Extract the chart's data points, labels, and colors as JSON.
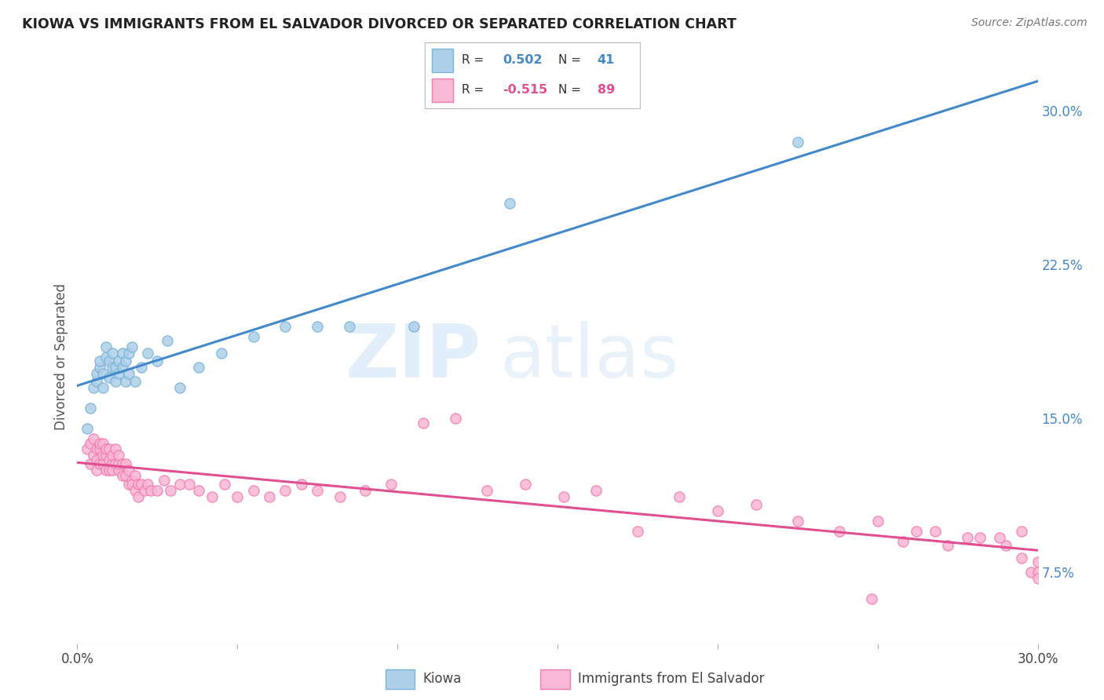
{
  "title": "KIOWA VS IMMIGRANTS FROM EL SALVADOR DIVORCED OR SEPARATED CORRELATION CHART",
  "source": "Source: ZipAtlas.com",
  "ylabel": "Divorced or Separated",
  "xlim": [
    0.0,
    0.3
  ],
  "ylim": [
    0.04,
    0.32
  ],
  "yticks_right": [
    0.075,
    0.15,
    0.225,
    0.3
  ],
  "ytick_labels_right": [
    "7.5%",
    "15.0%",
    "22.5%",
    "30.0%"
  ],
  "blue_color": "#7ab4d8",
  "blue_fill": "#aecfe8",
  "pink_color": "#f47cb0",
  "pink_fill": "#f9b8d4",
  "line_blue": "#4488cc",
  "line_pink": "#e05090",
  "watermark_zip": "ZIP",
  "watermark_atlas": "atlas",
  "background": "#ffffff",
  "grid_color": "#cccccc",
  "kiowa_x": [
    0.003,
    0.004,
    0.005,
    0.006,
    0.006,
    0.007,
    0.007,
    0.008,
    0.008,
    0.009,
    0.009,
    0.01,
    0.01,
    0.011,
    0.011,
    0.012,
    0.012,
    0.013,
    0.013,
    0.014,
    0.014,
    0.015,
    0.015,
    0.016,
    0.016,
    0.017,
    0.018,
    0.02,
    0.022,
    0.025,
    0.028,
    0.032,
    0.038,
    0.045,
    0.055,
    0.065,
    0.075,
    0.085,
    0.105,
    0.135,
    0.225
  ],
  "kiowa_y": [
    0.145,
    0.155,
    0.165,
    0.168,
    0.172,
    0.175,
    0.178,
    0.172,
    0.165,
    0.18,
    0.185,
    0.17,
    0.178,
    0.175,
    0.182,
    0.168,
    0.175,
    0.172,
    0.178,
    0.182,
    0.175,
    0.168,
    0.178,
    0.182,
    0.172,
    0.185,
    0.168,
    0.175,
    0.182,
    0.178,
    0.188,
    0.165,
    0.175,
    0.182,
    0.19,
    0.195,
    0.195,
    0.195,
    0.195,
    0.255,
    0.285
  ],
  "salvador_x": [
    0.003,
    0.004,
    0.004,
    0.005,
    0.005,
    0.006,
    0.006,
    0.006,
    0.007,
    0.007,
    0.007,
    0.008,
    0.008,
    0.008,
    0.009,
    0.009,
    0.009,
    0.01,
    0.01,
    0.01,
    0.011,
    0.011,
    0.011,
    0.012,
    0.012,
    0.013,
    0.013,
    0.013,
    0.014,
    0.014,
    0.015,
    0.015,
    0.016,
    0.016,
    0.017,
    0.017,
    0.018,
    0.018,
    0.019,
    0.019,
    0.02,
    0.021,
    0.022,
    0.023,
    0.025,
    0.027,
    0.029,
    0.032,
    0.035,
    0.038,
    0.042,
    0.046,
    0.05,
    0.055,
    0.06,
    0.065,
    0.07,
    0.075,
    0.082,
    0.09,
    0.098,
    0.108,
    0.118,
    0.128,
    0.14,
    0.152,
    0.162,
    0.175,
    0.188,
    0.2,
    0.212,
    0.225,
    0.238,
    0.25,
    0.262,
    0.272,
    0.282,
    0.29,
    0.295,
    0.298,
    0.3,
    0.3,
    0.3,
    0.295,
    0.288,
    0.278,
    0.268,
    0.258,
    0.248
  ],
  "salvador_y": [
    0.135,
    0.128,
    0.138,
    0.132,
    0.14,
    0.125,
    0.135,
    0.13,
    0.128,
    0.135,
    0.138,
    0.128,
    0.132,
    0.138,
    0.125,
    0.132,
    0.135,
    0.125,
    0.13,
    0.135,
    0.128,
    0.132,
    0.125,
    0.128,
    0.135,
    0.125,
    0.128,
    0.132,
    0.122,
    0.128,
    0.122,
    0.128,
    0.118,
    0.125,
    0.12,
    0.118,
    0.115,
    0.122,
    0.118,
    0.112,
    0.118,
    0.115,
    0.118,
    0.115,
    0.115,
    0.12,
    0.115,
    0.118,
    0.118,
    0.115,
    0.112,
    0.118,
    0.112,
    0.115,
    0.112,
    0.115,
    0.118,
    0.115,
    0.112,
    0.115,
    0.118,
    0.148,
    0.15,
    0.115,
    0.118,
    0.112,
    0.115,
    0.095,
    0.112,
    0.105,
    0.108,
    0.1,
    0.095,
    0.1,
    0.095,
    0.088,
    0.092,
    0.088,
    0.082,
    0.075,
    0.08,
    0.075,
    0.072,
    0.095,
    0.092,
    0.092,
    0.095,
    0.09,
    0.062
  ]
}
